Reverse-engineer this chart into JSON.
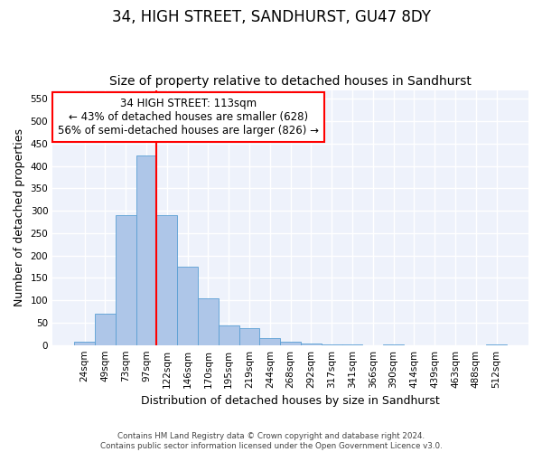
{
  "title": "34, HIGH STREET, SANDHURST, GU47 8DY",
  "subtitle": "Size of property relative to detached houses in Sandhurst",
  "xlabel": "Distribution of detached houses by size in Sandhurst",
  "ylabel": "Number of detached properties",
  "bar_labels": [
    "24sqm",
    "49sqm",
    "73sqm",
    "97sqm",
    "122sqm",
    "146sqm",
    "170sqm",
    "195sqm",
    "219sqm",
    "244sqm",
    "268sqm",
    "292sqm",
    "317sqm",
    "341sqm",
    "366sqm",
    "390sqm",
    "414sqm",
    "439sqm",
    "463sqm",
    "488sqm",
    "512sqm"
  ],
  "bar_values": [
    7,
    70,
    290,
    424,
    290,
    175,
    105,
    43,
    38,
    15,
    7,
    3,
    2,
    1,
    0,
    2,
    0,
    0,
    0,
    0,
    2
  ],
  "bar_color": "#aec6e8",
  "bar_edge_color": "#5a9fd4",
  "vline_x": 3.5,
  "annotation_text": "34 HIGH STREET: 113sqm\n← 43% of detached houses are smaller (628)\n56% of semi-detached houses are larger (826) →",
  "annotation_box_color": "white",
  "annotation_box_edge": "red",
  "vline_color": "red",
  "ylim": [
    0,
    570
  ],
  "yticks": [
    0,
    50,
    100,
    150,
    200,
    250,
    300,
    350,
    400,
    450,
    500,
    550
  ],
  "background_color": "#eef2fb",
  "grid_color": "white",
  "footer_line1": "Contains HM Land Registry data © Crown copyright and database right 2024.",
  "footer_line2": "Contains public sector information licensed under the Open Government Licence v3.0.",
  "title_fontsize": 12,
  "subtitle_fontsize": 10,
  "label_fontsize": 9,
  "tick_fontsize": 7.5,
  "annot_fontsize": 8.5
}
